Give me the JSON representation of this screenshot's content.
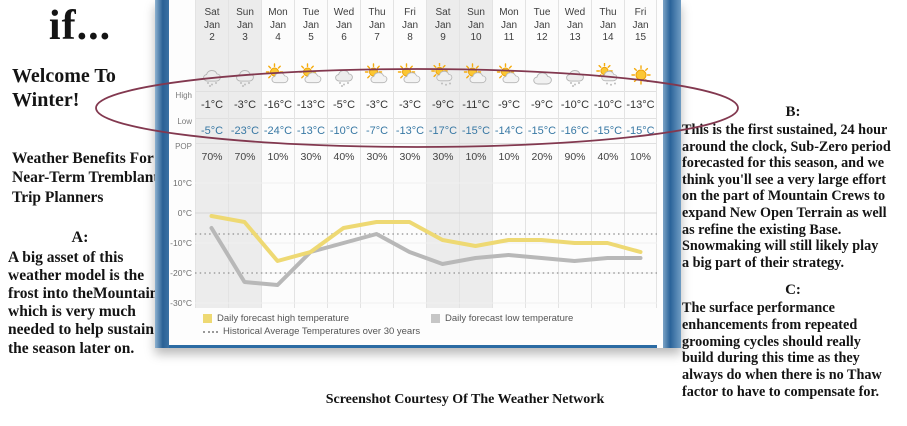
{
  "left": {
    "title": "if...",
    "welcome": "Welcome To\nWinter!",
    "benefits": "Weather Benefits For\nNear-Term Tremblant\nTrip Planners",
    "a_label": "A:",
    "a_text": "A big asset of this\nweather model is the\nfrost into theMountain\nwhich is very much\nneeded to help sustain\nthe season later on."
  },
  "right": {
    "b_label": "B:",
    "b_text": "This is the first sustained, 24 hour\naround the clock, Sub-Zero period\nforecasted for this season, and we\nthink you'll see a very large effort\non the part of Mountain Crews to\nexpand New Open Terrain as well\nas refine the existing Base.\nSnowmaking will still likely play\na big part of their strategy.",
    "c_label": "C:",
    "c_text": "The surface performance\nenhancements from repeated\ngrooming cycles should really\nbuild during this time as they\nalways do when there is no Thaw\nfactor to have to compensate for."
  },
  "caption": "Screenshot Courtesy Of The Weather Network",
  "colors": {
    "high_line": "#eed973",
    "low_line": "#b8b8b8",
    "historical_dotted": "#9f9f9f",
    "widget_blue": "#2b6ba3",
    "annotation_ellipse": "#82384f",
    "low_text": "#3878a4",
    "weekend_shade": "#ececec"
  },
  "widget": {
    "row_labels": {
      "high": "High",
      "low": "Low",
      "pop": "POP"
    },
    "y_ticks": [
      {
        "label": "10°C",
        "temp": 10
      },
      {
        "label": "0°C",
        "temp": 0
      },
      {
        "label": "-10°C",
        "temp": -10
      },
      {
        "label": "-20°C",
        "temp": -20
      },
      {
        "label": "-30°C",
        "temp": -30
      }
    ],
    "legend": {
      "high": "Daily forecast high temperature",
      "low": "Daily forecast low temperature",
      "historical": "Historical Average Temperatures over 30 years"
    },
    "days": [
      {
        "dow": "Sat",
        "mon": "Jan",
        "day": "2",
        "icon": "snow-cloud",
        "high": "-1°C",
        "low": "-5°C",
        "pop": "70%",
        "weekend": true
      },
      {
        "dow": "Sun",
        "mon": "Jan",
        "day": "3",
        "icon": "snow-cloud",
        "high": "-3°C",
        "low": "-23°C",
        "pop": "70%",
        "weekend": true
      },
      {
        "dow": "Mon",
        "mon": "Jan",
        "day": "4",
        "icon": "sun-cloud",
        "high": "-16°C",
        "low": "-24°C",
        "pop": "10%",
        "weekend": false
      },
      {
        "dow": "Tue",
        "mon": "Jan",
        "day": "5",
        "icon": "sun-cloud",
        "high": "-13°C",
        "low": "-13°C",
        "pop": "30%",
        "weekend": false
      },
      {
        "dow": "Wed",
        "mon": "Jan",
        "day": "6",
        "icon": "snow-cloud",
        "high": "-5°C",
        "low": "-10°C",
        "pop": "40%",
        "weekend": false
      },
      {
        "dow": "Thu",
        "mon": "Jan",
        "day": "7",
        "icon": "sun-cloud",
        "high": "-3°C",
        "low": "-7°C",
        "pop": "30%",
        "weekend": false
      },
      {
        "dow": "Fri",
        "mon": "Jan",
        "day": "8",
        "icon": "sun-cloud",
        "high": "-3°C",
        "low": "-13°C",
        "pop": "30%",
        "weekend": false
      },
      {
        "dow": "Sat",
        "mon": "Jan",
        "day": "9",
        "icon": "sun-snow-cloud",
        "high": "-9°C",
        "low": "-17°C",
        "pop": "30%",
        "weekend": true
      },
      {
        "dow": "Sun",
        "mon": "Jan",
        "day": "10",
        "icon": "sun-cloud",
        "high": "-11°C",
        "low": "-15°C",
        "pop": "10%",
        "weekend": true
      },
      {
        "dow": "Mon",
        "mon": "Jan",
        "day": "11",
        "icon": "sun-cloud",
        "high": "-9°C",
        "low": "-14°C",
        "pop": "10%",
        "weekend": false
      },
      {
        "dow": "Tue",
        "mon": "Jan",
        "day": "12",
        "icon": "cloud",
        "high": "-9°C",
        "low": "-15°C",
        "pop": "20%",
        "weekend": false
      },
      {
        "dow": "Wed",
        "mon": "Jan",
        "day": "13",
        "icon": "snow-cloud",
        "high": "-10°C",
        "low": "-16°C",
        "pop": "90%",
        "weekend": false
      },
      {
        "dow": "Thu",
        "mon": "Jan",
        "day": "14",
        "icon": "sun-snow-cloud",
        "high": "-10°C",
        "low": "-15°C",
        "pop": "40%",
        "weekend": false
      },
      {
        "dow": "Fri",
        "mon": "Jan",
        "day": "15",
        "icon": "sun",
        "high": "-13°C",
        "low": "-15°C",
        "pop": "10%",
        "weekend": false
      }
    ]
  },
  "chart_data": {
    "type": "line",
    "title": "",
    "x": [
      "Sat Jan 2",
      "Sun Jan 3",
      "Mon Jan 4",
      "Tue Jan 5",
      "Wed Jan 6",
      "Thu Jan 7",
      "Fri Jan 8",
      "Sat Jan 9",
      "Sun Jan 10",
      "Mon Jan 11",
      "Tue Jan 12",
      "Wed Jan 13",
      "Thu Jan 14",
      "Fri Jan 15"
    ],
    "series": [
      {
        "name": "Daily forecast high temperature",
        "color": "#eed973",
        "values": [
          -1,
          -3,
          -16,
          -13,
          -5,
          -3,
          -3,
          -9,
          -11,
          -9,
          -9,
          -10,
          -10,
          -13
        ]
      },
      {
        "name": "Daily forecast low temperature",
        "color": "#b8b8b8",
        "values": [
          -5,
          -23,
          -24,
          -13,
          -10,
          -7,
          -13,
          -17,
          -15,
          -14,
          -15,
          -16,
          -15,
          -15
        ]
      }
    ],
    "reference_lines": {
      "name": "Historical Average Temperatures over 30 years",
      "style": "dotted",
      "values": [
        -7,
        -20
      ]
    },
    "pop_percent": [
      70,
      70,
      10,
      30,
      40,
      30,
      30,
      30,
      10,
      10,
      20,
      90,
      40,
      10
    ],
    "ylabel": "°C",
    "y_ticks": [
      10,
      0,
      -10,
      -20,
      -30
    ],
    "ylim": [
      -30,
      10
    ],
    "legend_position": "bottom",
    "notes": "weekend columns shaded gray"
  }
}
